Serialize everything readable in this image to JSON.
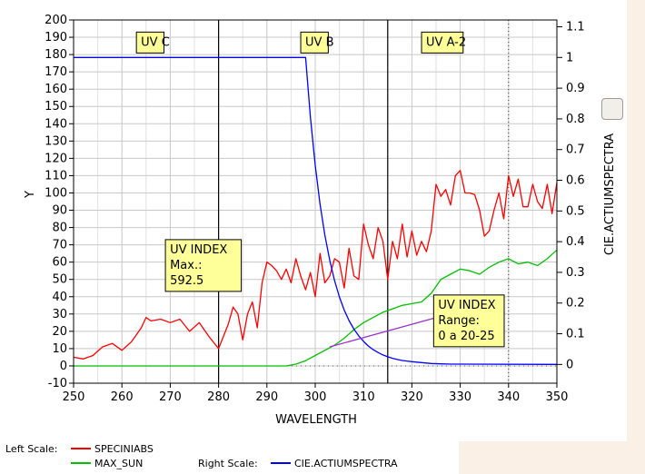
{
  "chart_data": {
    "type": "line",
    "xlabel": "WAVELENGTH",
    "ylabel": "Y",
    "y2label": "CIE.ACTIUMSPECTRA",
    "xlim": [
      250,
      350
    ],
    "ylim": [
      -10,
      200
    ],
    "y2lim": [
      -0.0611,
      1.1222
    ],
    "x_ticks": [
      250,
      260,
      270,
      280,
      290,
      300,
      310,
      320,
      330,
      340,
      350
    ],
    "y_ticks": [
      -10,
      0,
      10,
      20,
      30,
      40,
      50,
      60,
      70,
      80,
      90,
      100,
      110,
      120,
      130,
      140,
      150,
      160,
      170,
      180,
      190,
      200
    ],
    "y2_ticks": [
      "0",
      "0.1",
      "0.2",
      "0.3",
      "0.4",
      "0.5",
      "0.6",
      "0.7",
      "0.8",
      "0.9",
      "1",
      "1.1"
    ],
    "y2_tick_values": [
      0,
      0.1,
      0.2,
      0.3,
      0.4,
      0.5,
      0.6,
      0.7,
      0.8,
      0.9,
      1,
      1.1
    ],
    "grid": true,
    "series": [
      {
        "name": "SPECINIABS",
        "axis": "left",
        "color": "#ff0000",
        "x": [
          250,
          252,
          254,
          256,
          258,
          260,
          262,
          264,
          265,
          266,
          268,
          270,
          272,
          274,
          276,
          278,
          280,
          282,
          283,
          284,
          285,
          286,
          287,
          288,
          289,
          290,
          291,
          292,
          293,
          294,
          295,
          296,
          297,
          298,
          299,
          300,
          301,
          302,
          303,
          304,
          305,
          306,
          307,
          308,
          309,
          310,
          311,
          312,
          313,
          314,
          315,
          316,
          317,
          318,
          319,
          320,
          321,
          322,
          323,
          324,
          325,
          326,
          327,
          328,
          329,
          330,
          331,
          332,
          333,
          334,
          335,
          336,
          337,
          338,
          339,
          340,
          341,
          342,
          343,
          344,
          345,
          346,
          347,
          348,
          349,
          350
        ],
        "values": [
          5,
          4,
          6,
          11,
          13,
          9,
          14,
          22,
          28,
          26,
          27,
          25,
          27,
          20,
          25,
          17,
          10,
          24,
          34,
          30,
          15,
          30,
          37,
          22,
          48,
          60,
          58,
          55,
          50,
          56,
          48,
          62,
          52,
          44,
          54,
          40,
          65,
          48,
          52,
          62,
          60,
          45,
          68,
          52,
          50,
          82,
          70,
          62,
          80,
          72,
          50,
          72,
          62,
          82,
          63,
          78,
          64,
          72,
          66,
          78,
          105,
          98,
          102,
          93,
          110,
          113,
          100,
          100,
          99,
          90,
          75,
          78,
          90,
          100,
          85,
          110,
          98,
          108,
          92,
          92,
          105,
          95,
          91,
          105,
          88,
          106
        ]
      },
      {
        "name": "MAX_SUN",
        "axis": "left",
        "color": "#00c000",
        "x": [
          250,
          294,
          296,
          298,
          300,
          302,
          304,
          306,
          308,
          310,
          312,
          314,
          316,
          318,
          320,
          322,
          324,
          326,
          328,
          330,
          332,
          334,
          336,
          338,
          340,
          342,
          344,
          346,
          348,
          350
        ],
        "values": [
          0,
          0,
          1,
          3,
          6,
          9,
          12,
          16,
          21,
          25,
          28,
          31,
          33,
          35,
          36,
          37,
          42,
          50,
          53,
          56,
          55,
          53,
          57,
          60,
          62,
          59,
          60,
          58,
          62,
          67
        ]
      },
      {
        "name": "CIE.ACTIUMSPECTRA",
        "axis": "right",
        "color": "#0000ff",
        "x": [
          250,
          298,
          299,
          300,
          301,
          302,
          303,
          304,
          305,
          306,
          307,
          308,
          309,
          310,
          311,
          312,
          313,
          314,
          315,
          316,
          317,
          318,
          319,
          320,
          322,
          324,
          326,
          328,
          350
        ],
        "values": [
          1.0,
          1.0,
          0.805,
          0.649,
          0.522,
          0.421,
          0.339,
          0.273,
          0.22,
          0.177,
          0.143,
          0.115,
          0.093,
          0.075,
          0.06,
          0.048,
          0.039,
          0.031,
          0.025,
          0.02,
          0.016,
          0.013,
          0.011,
          0.009,
          0.006,
          0.003,
          0.002,
          0.001,
          0.0
        ]
      }
    ],
    "vertical_lines": [
      {
        "x": 280,
        "style": "solid"
      },
      {
        "x": 315,
        "style": "solid"
      },
      {
        "x": 340,
        "style": "dotted"
      }
    ],
    "annotations": [
      {
        "id": "uvc",
        "lines": [
          "UV C"
        ],
        "at": [
          263,
          193
        ],
        "width": 5.7
      },
      {
        "id": "uvb",
        "lines": [
          "UV B"
        ],
        "at": [
          297,
          193
        ],
        "width": 5.7
      },
      {
        "id": "uva2",
        "lines": [
          "UV A-2"
        ],
        "at": [
          322,
          193
        ],
        "width": 8.6
      },
      {
        "id": "uvindex-max",
        "lines": [
          "UV INDEX",
          "Max.:",
          "592.5"
        ],
        "at": [
          269,
          73
        ],
        "width": 15.7,
        "pointer_to": [
          280,
          43
        ]
      },
      {
        "id": "uvindex-range",
        "lines": [
          "UV INDEX",
          "Range:",
          "0 a 20-25"
        ],
        "at": [
          324.5,
          41
        ],
        "width": 14.6,
        "pointer_from": [
          303,
          11
        ]
      }
    ],
    "legend": {
      "left_scale_label": "Left Scale:",
      "right_scale_label": "Right Scale:",
      "left_series": [
        "SPECINIABS",
        "MAX_SUN"
      ],
      "right_series": [
        "CIE.ACTIUMSPECTRA"
      ]
    }
  }
}
